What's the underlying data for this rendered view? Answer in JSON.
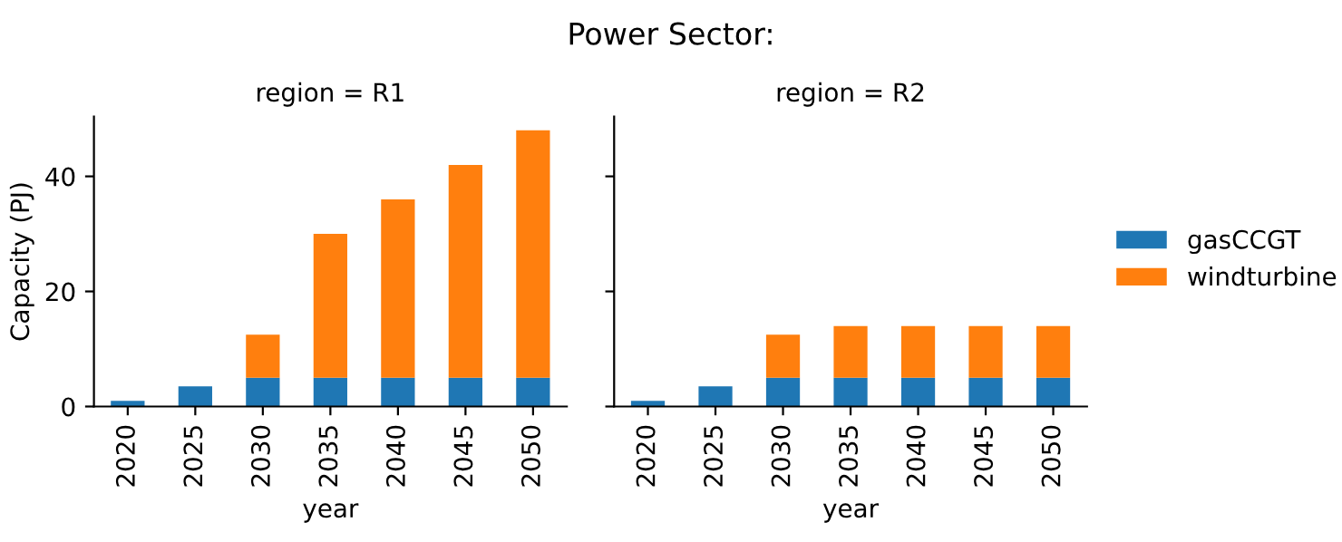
{
  "chart_data": [
    {
      "type": "bar",
      "subtitle": "region = R1",
      "xlabel": "year",
      "ylabel": "Capacity (PJ)",
      "stacked": true,
      "categories": [
        "2020",
        "2025",
        "2030",
        "2035",
        "2040",
        "2045",
        "2050"
      ],
      "series": [
        {
          "name": "gasCCGT",
          "color": "#1f77b4",
          "values": [
            1.0,
            3.5,
            5,
            5,
            5,
            5,
            5
          ]
        },
        {
          "name": "windturbine",
          "color": "#ff7f0e",
          "values": [
            0,
            0,
            7.5,
            25,
            31,
            37,
            43
          ]
        }
      ],
      "ylim": [
        0,
        50.4
      ],
      "yticks": [
        0,
        20,
        40
      ],
      "legend": "right",
      "grid": false
    },
    {
      "type": "bar",
      "title": "Power Sector:",
      "subtitle": "region = R2",
      "xlabel": "year",
      "stacked": true,
      "categories": [
        "2020",
        "2025",
        "2030",
        "2035",
        "2040",
        "2045",
        "2050"
      ],
      "series": [
        {
          "color": "#1f77b4",
          "values": [
            1.0,
            3.5,
            5,
            5,
            5,
            5,
            5
          ]
        },
        {
          "color": "#ff7f0e",
          "values": [
            0,
            0,
            7.5,
            9,
            9,
            9,
            9
          ]
        }
      ],
      "ylim": [
        0,
        50.4
      ],
      "yticks": [
        0,
        20,
        40
      ],
      "tick_labels": "x",
      "grid": false
    }
  ]
}
